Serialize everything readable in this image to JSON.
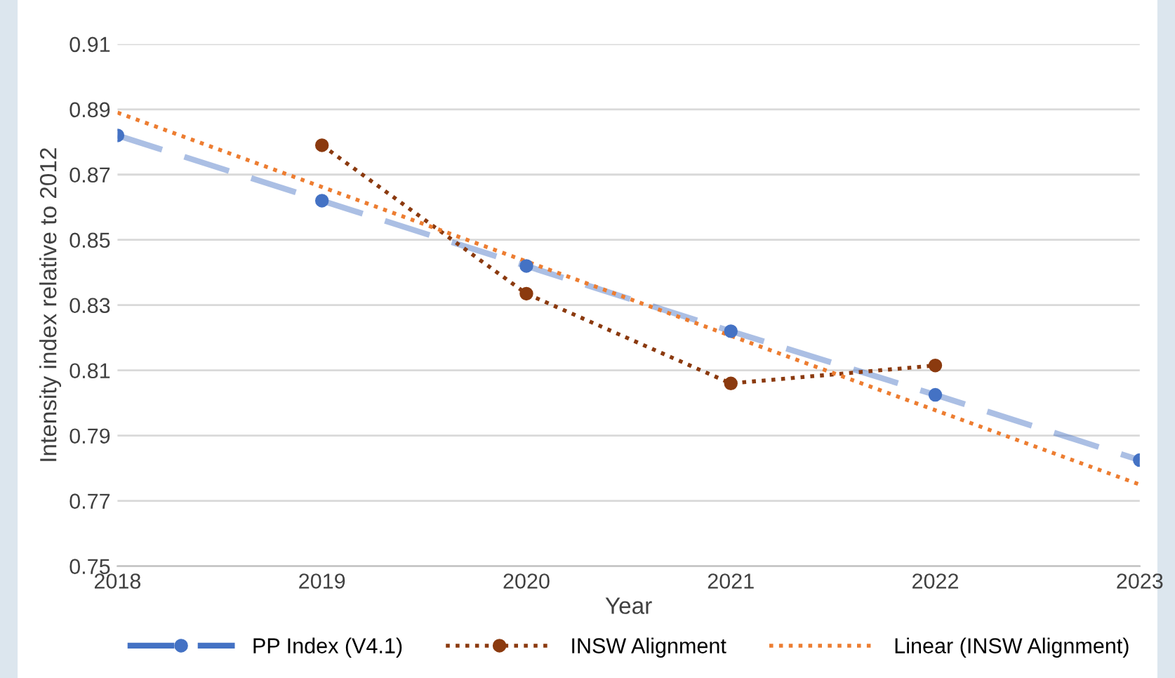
{
  "chart_data": {
    "type": "line",
    "xlabel": "Year",
    "ylabel": "Intensity index relative to 2012",
    "xlim": [
      2018,
      2023
    ],
    "xticks": [
      2018,
      2019,
      2020,
      2021,
      2022,
      2023
    ],
    "ylim": [
      0.75,
      0.91
    ],
    "yticks": [
      {
        "value": 0.75,
        "label": "0.75"
      },
      {
        "value": 0.77,
        "label": "0.77"
      },
      {
        "value": 0.79,
        "label": "0.79"
      },
      {
        "value": 0.81,
        "label": "0.81"
      },
      {
        "value": 0.83,
        "label": "0.83"
      },
      {
        "value": 0.85,
        "label": "0.85"
      },
      {
        "value": 0.87,
        "label": "0.87"
      },
      {
        "value": 0.89,
        "label": "0.89"
      },
      {
        "value": 0.91,
        "label": "0.91"
      }
    ],
    "grid": "y",
    "legend": "bottom",
    "series": [
      {
        "name": "PP Index (V4.1)",
        "color": "#4472c4",
        "x": [
          2018,
          2019,
          2020,
          2021,
          2022,
          2023
        ],
        "values": [
          0.882,
          0.862,
          0.842,
          0.822,
          0.8025,
          0.7825
        ],
        "marker": "circle",
        "line_style": "dashed"
      },
      {
        "name": "INSW Alignment",
        "color": "#8b3a0f",
        "x": [
          2019,
          2020,
          2021,
          2022
        ],
        "values": [
          0.879,
          0.8335,
          0.806,
          0.8115
        ],
        "marker": "circle",
        "line_style": "dotted"
      },
      {
        "name": "Linear (INSW Alignment)",
        "color": "#ed7d31",
        "x": [
          2018,
          2023
        ],
        "values": [
          0.889,
          0.775
        ],
        "marker": "none",
        "line_style": "dotted"
      }
    ]
  }
}
